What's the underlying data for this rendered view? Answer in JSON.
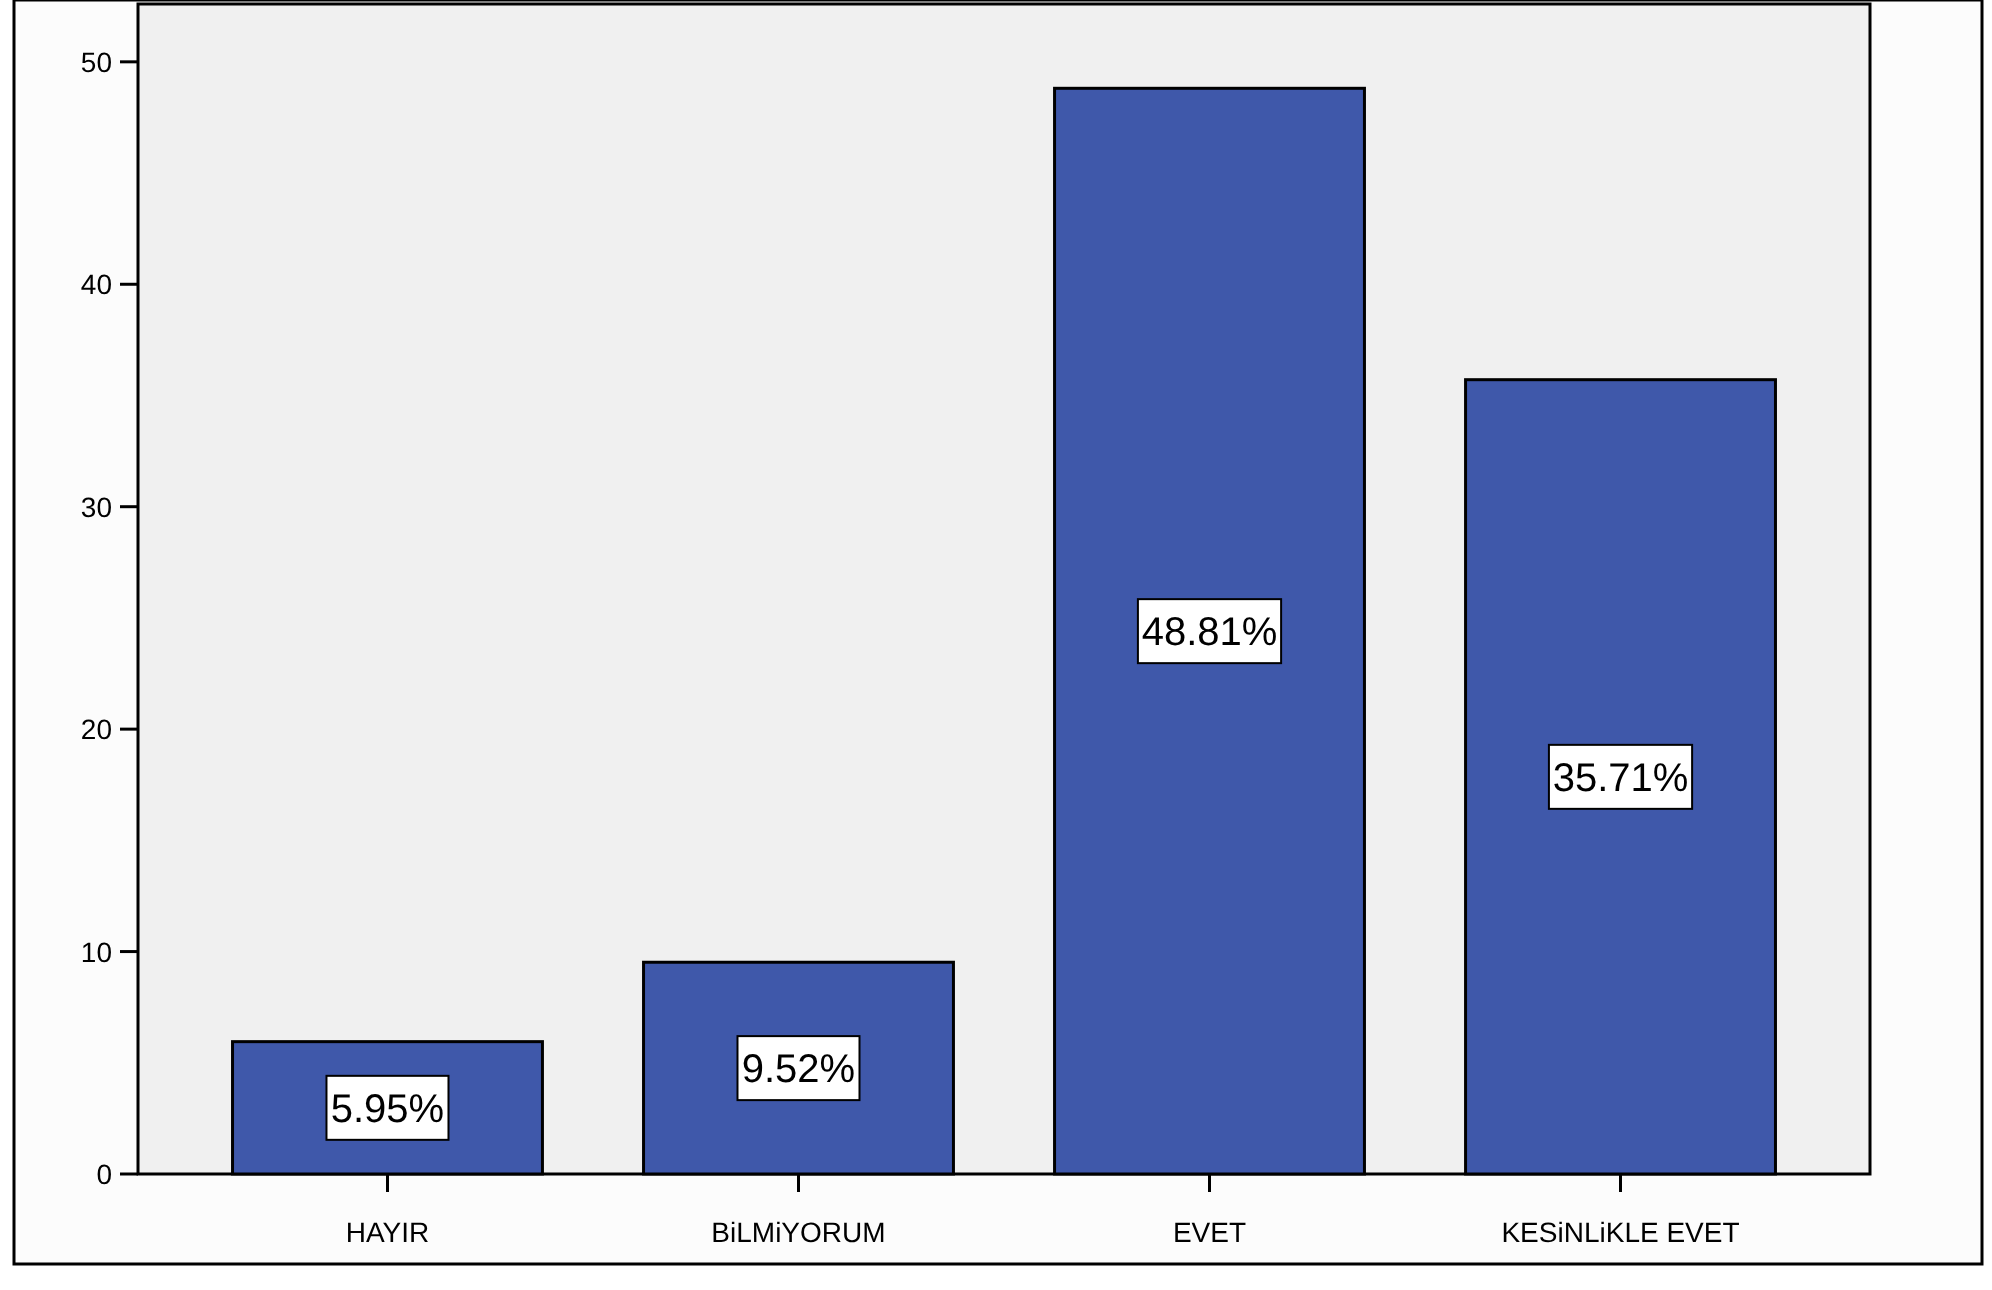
{
  "chart_data": {
    "type": "bar",
    "categories": [
      "HAYIR",
      "BiLMiYORUM",
      "EVET",
      "KESiNLiKLE EVET"
    ],
    "values": [
      5.95,
      9.52,
      48.81,
      35.71
    ],
    "color": "#3f58aa",
    "value_labels": [
      "5.95%",
      "9.52%",
      "48.81%",
      "35.71%"
    ],
    "ylim": [
      0,
      52.6
    ],
    "yticks": [
      0,
      10,
      20,
      30,
      40,
      50
    ],
    "grid": false
  }
}
